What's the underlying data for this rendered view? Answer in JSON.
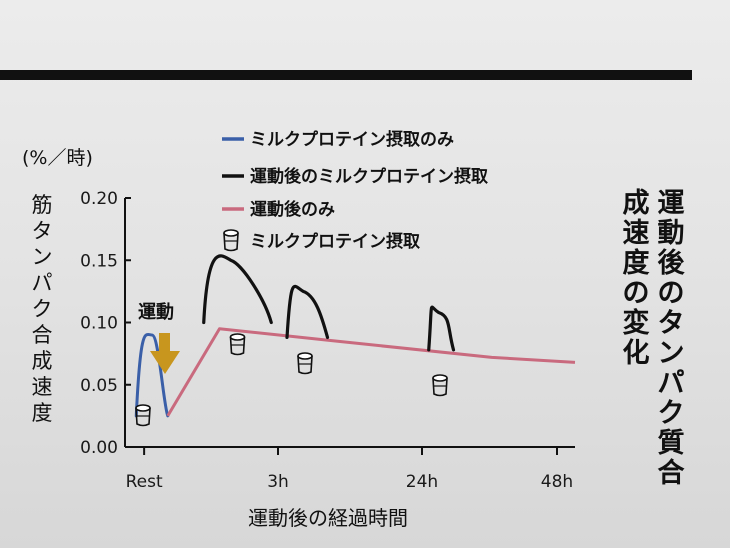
{
  "chart_data": {
    "type": "line",
    "side_title": "運動後のタンパク質合成速度の変化",
    "unit": "(%／時)",
    "ylabel": "筋タンパク合成速度",
    "xlabel": "運動後の経過時間",
    "ylim": [
      0,
      0.2
    ],
    "yticks": [
      "0.00",
      "0.05",
      "0.10",
      "0.15",
      "0.20"
    ],
    "x_ticks": [
      "Rest",
      "3h",
      "24h",
      "48h"
    ],
    "exercise_label": "運動",
    "legend": [
      {
        "label": "ミルクプロテイン摂取のみ",
        "color": "#3a5fa8",
        "marker": "line"
      },
      {
        "label": "運動後のミルクプロテイン摂取",
        "color": "#111111",
        "marker": "line"
      },
      {
        "label": "運動後のみ",
        "color": "#c96a7e",
        "marker": "line"
      },
      {
        "label": "ミルクプロテイン摂取",
        "color": "#111111",
        "marker": "cup"
      }
    ],
    "series": [
      {
        "name": "ミルクプロテイン摂取のみ",
        "color": "#3a5fa8",
        "points": [
          [
            0.5,
            0.025
          ],
          [
            1.2,
            0.09
          ],
          [
            1.9,
            0.025
          ]
        ]
      },
      {
        "name": "運動後のみ",
        "color": "#c96a7e",
        "points": [
          [
            1.9,
            0.025
          ],
          [
            4.2,
            0.095
          ],
          [
            9.4,
            0.085
          ],
          [
            16.3,
            0.072
          ],
          [
            20,
            0.068
          ]
        ]
      },
      {
        "name": "運動後のミルクプロテイン摂取",
        "color": "#111111",
        "pulses": [
          {
            "start": 3.5,
            "peak": 0.15,
            "end": 6.5,
            "base": 0.1
          },
          {
            "start": 7.2,
            "peak": 0.125,
            "end": 9.0,
            "base": 0.088
          },
          {
            "start": 13.5,
            "peak": 0.108,
            "end": 14.6,
            "base": 0.078
          }
        ]
      }
    ],
    "cups": [
      0.8,
      5.0,
      8.0,
      14.0
    ]
  }
}
